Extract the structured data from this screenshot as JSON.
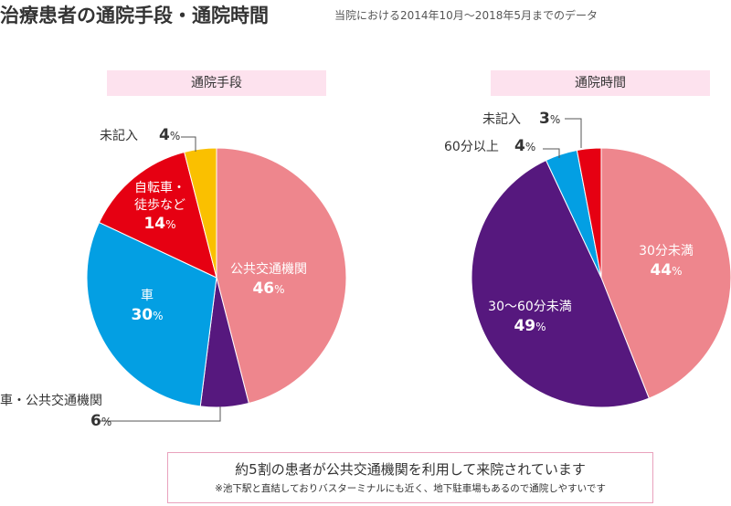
{
  "header": {
    "title": "治療患者の通院手段・通院時間",
    "note": "当院における2014年10月～2018年5月までのデータ"
  },
  "chart_data": [
    {
      "type": "pie",
      "title": "通院手段",
      "slices": [
        {
          "name": "公共交通機関",
          "value": 46,
          "color": "#ee868d",
          "label_color": "#ffffff"
        },
        {
          "name": "車・公共交通機関",
          "value": 6,
          "color": "#56187e",
          "label_color": "#333333"
        },
        {
          "name": "車",
          "value": 30,
          "color": "#039fe3",
          "label_color": "#ffffff"
        },
        {
          "name": "自転車・徒歩など",
          "value": 14,
          "color": "#e60012",
          "label_color": "#ffffff"
        },
        {
          "name": "未記入",
          "value": 4,
          "color": "#fac000",
          "label_color": "#333333"
        }
      ]
    },
    {
      "type": "pie",
      "title": "通院時間",
      "slices": [
        {
          "name": "30分未満",
          "value": 44,
          "color": "#ee868d",
          "label_color": "#ffffff"
        },
        {
          "name": "30～60分未満",
          "value": 49,
          "color": "#56187e",
          "label_color": "#ffffff"
        },
        {
          "name": "60分以上",
          "value": 4,
          "color": "#039fe3",
          "label_color": "#333333"
        },
        {
          "name": "未記入",
          "value": 3,
          "color": "#e60012",
          "label_color": "#333333"
        }
      ]
    }
  ],
  "unit": "%",
  "summary": {
    "main": "約5割の患者が公共交通機関を利用して来院されています",
    "sub": "※池下駅と直結しておりバスターミナルにも近く、地下駐車場もあるので通院しやすいです"
  }
}
